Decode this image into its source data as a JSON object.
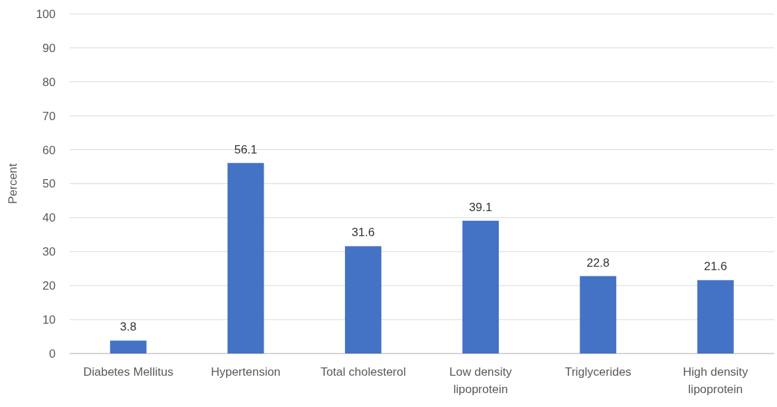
{
  "chart_data": {
    "type": "bar",
    "ylabel": "Percent",
    "categories": [
      "Diabetes Mellitus",
      "Hypertension",
      "Total cholesterol",
      "Low density lipoprotein",
      "Triglycerides",
      "High density lipoprotein"
    ],
    "values": [
      3.8,
      56.1,
      31.6,
      39.1,
      22.8,
      21.6
    ],
    "color": "#4472c4",
    "ylim": [
      0,
      100
    ],
    "yticks": [
      0,
      10,
      20,
      30,
      40,
      50,
      60,
      70,
      80,
      90,
      100
    ],
    "grid": "y",
    "data_labels": true
  }
}
